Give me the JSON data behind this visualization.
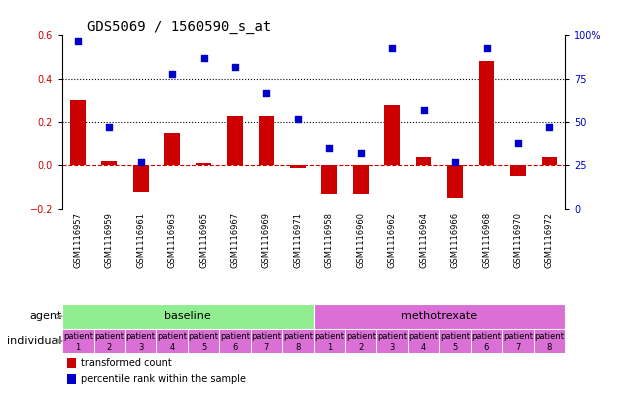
{
  "title": "GDS5069 / 1560590_s_at",
  "samples": [
    "GSM1116957",
    "GSM1116959",
    "GSM1116961",
    "GSM1116963",
    "GSM1116965",
    "GSM1116967",
    "GSM1116969",
    "GSM1116971",
    "GSM1116958",
    "GSM1116960",
    "GSM1116962",
    "GSM1116964",
    "GSM1116966",
    "GSM1116968",
    "GSM1116970",
    "GSM1116972"
  ],
  "bar_values": [
    0.3,
    0.02,
    -0.12,
    0.15,
    0.01,
    0.23,
    0.23,
    -0.01,
    -0.13,
    -0.13,
    0.28,
    0.04,
    -0.15,
    0.48,
    -0.05,
    0.04
  ],
  "dot_values": [
    97,
    47,
    27,
    78,
    87,
    82,
    67,
    52,
    35,
    32,
    93,
    57,
    27,
    93,
    38,
    47
  ],
  "ylim_left": [
    -0.2,
    0.6
  ],
  "ylim_right": [
    0,
    100
  ],
  "yticks_left": [
    -0.2,
    0.0,
    0.2,
    0.4,
    0.6
  ],
  "yticks_right": [
    0,
    25,
    50,
    75,
    100
  ],
  "ytick_labels_right": [
    "0",
    "25",
    "50",
    "75",
    "100%"
  ],
  "hlines": [
    0.2,
    0.4
  ],
  "bar_color": "#cc0000",
  "dot_color": "#0000cc",
  "zero_line_color": "#cc0000",
  "agent_groups": [
    {
      "label": "baseline",
      "start": 0,
      "end": 8,
      "color": "#90ee90"
    },
    {
      "label": "methotrexate",
      "start": 8,
      "end": 16,
      "color": "#da70d6"
    }
  ],
  "individual_colors_all": "#da70d6",
  "individual_labels": [
    "patient\n1",
    "patient\n2",
    "patient\n3",
    "patient\n4",
    "patient\n5",
    "patient\n6",
    "patient\n7",
    "patient\n8",
    "patient\n1",
    "patient\n2",
    "patient\n3",
    "patient\n4",
    "patient\n5",
    "patient\n6",
    "patient\n7",
    "patient\n8"
  ],
  "legend_bar_label": "transformed count",
  "legend_dot_label": "percentile rank within the sample",
  "agent_label": "agent",
  "individual_label": "individual",
  "background_color": "#ffffff",
  "sample_area_color": "#c8c8c8",
  "title_fontsize": 10,
  "tick_fontsize": 7,
  "sample_fontsize": 6,
  "label_fontsize": 8,
  "agent_fontsize": 8,
  "indiv_fontsize": 6
}
